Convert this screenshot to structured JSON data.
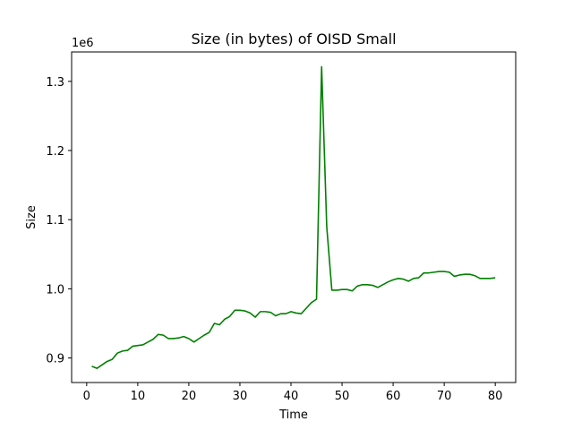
{
  "chart_data": {
    "type": "line",
    "title": "Size (in bytes) of OISD Small",
    "xlabel": "Time",
    "ylabel": "Size",
    "y_offset_label": "1e6",
    "xlim": [
      -2.95,
      84.0
    ],
    "ylim": [
      0.8645,
      1.3425
    ],
    "x_ticks": [
      0,
      10,
      20,
      30,
      40,
      50,
      60,
      70,
      80
    ],
    "x_tick_labels": [
      "0",
      "10",
      "20",
      "30",
      "40",
      "50",
      "60",
      "70",
      "80"
    ],
    "y_ticks": [
      0.9,
      1.0,
      1.1,
      1.2,
      1.3
    ],
    "y_tick_labels": [
      "0.9",
      "1.0",
      "1.1",
      "1.2",
      "1.3"
    ],
    "grid": false,
    "series": [
      {
        "color": "#008000",
        "x": [
          1,
          2,
          3,
          4,
          5,
          6,
          7,
          8,
          9,
          10,
          11,
          12,
          13,
          14,
          15,
          16,
          17,
          18,
          19,
          20,
          21,
          22,
          23,
          24,
          25,
          26,
          27,
          28,
          29,
          30,
          31,
          32,
          33,
          34,
          35,
          36,
          37,
          38,
          39,
          40,
          41,
          42,
          43,
          44,
          45,
          46,
          47,
          48,
          49,
          50,
          51,
          52,
          53,
          54,
          55,
          56,
          57,
          58,
          59,
          60,
          61,
          62,
          63,
          64,
          65,
          66,
          67,
          68,
          69,
          70,
          71,
          72,
          73,
          74,
          75,
          76,
          77,
          78,
          79,
          80
        ],
        "y": [
          0.888,
          0.885,
          0.89,
          0.895,
          0.898,
          0.907,
          0.91,
          0.911,
          0.917,
          0.918,
          0.919,
          0.923,
          0.927,
          0.934,
          0.933,
          0.928,
          0.928,
          0.929,
          0.931,
          0.928,
          0.923,
          0.928,
          0.933,
          0.937,
          0.95,
          0.948,
          0.956,
          0.96,
          0.969,
          0.969,
          0.968,
          0.965,
          0.959,
          0.967,
          0.967,
          0.966,
          0.961,
          0.964,
          0.964,
          0.967,
          0.965,
          0.964,
          0.972,
          0.98,
          0.985,
          1.321,
          1.09,
          0.998,
          0.998,
          0.999,
          0.999,
          0.997,
          1.004,
          1.006,
          1.006,
          1.005,
          1.002,
          1.006,
          1.01,
          1.013,
          1.015,
          1.014,
          1.011,
          1.015,
          1.016,
          1.023,
          1.023,
          1.024,
          1.025,
          1.025,
          1.024,
          1.018,
          1.02,
          1.021,
          1.021,
          1.019,
          1.015,
          1.015,
          1.015,
          1.016
        ]
      }
    ]
  }
}
